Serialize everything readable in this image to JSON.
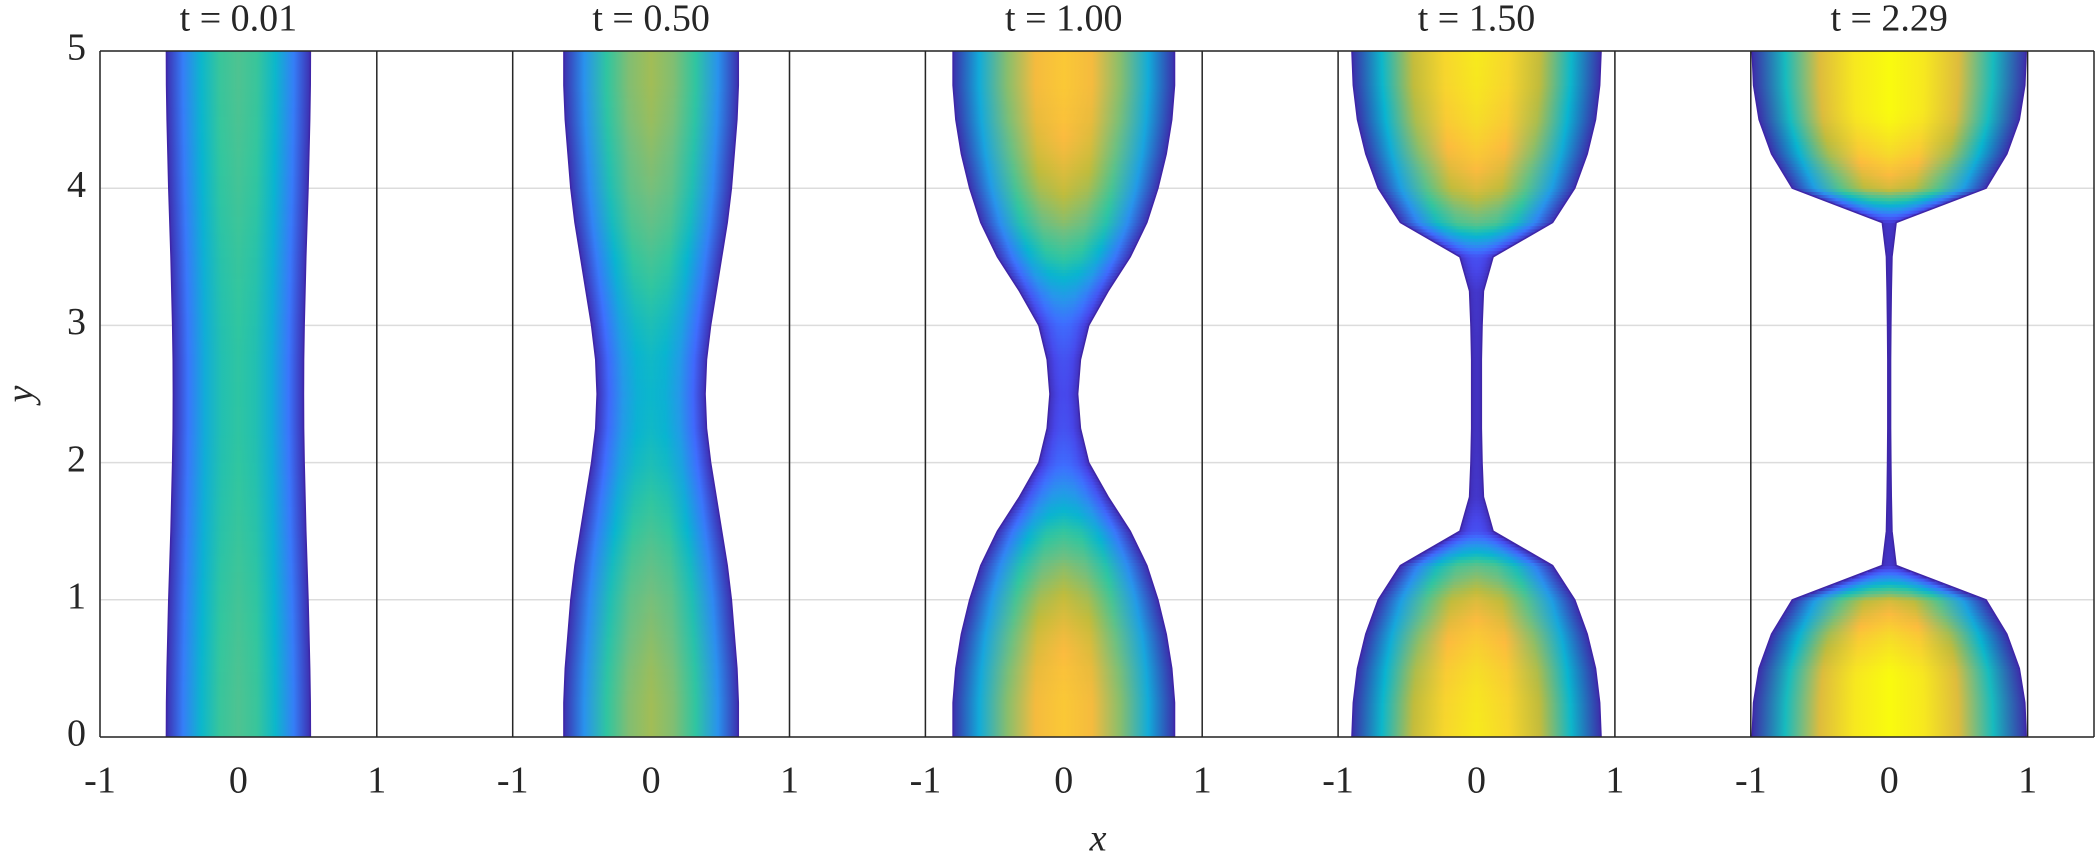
{
  "chart_data": {
    "type": "profile",
    "xlabel": "x",
    "ylabel": "y",
    "xlim": [
      -1,
      1
    ],
    "xticks": [
      -1,
      0,
      1
    ],
    "ylim": [
      0,
      5
    ],
    "yticks": [
      0,
      1,
      2,
      3,
      4,
      5
    ],
    "grid": true,
    "edge_color": "#3e26a8",
    "panels": [
      {
        "title": "t = 0.01",
        "y": [
          0,
          0.25,
          0.5,
          0.75,
          1,
          1.25,
          1.5,
          1.75,
          2,
          2.25,
          2.5,
          2.75,
          3,
          3.25,
          3.5,
          3.75,
          4,
          4.25,
          4.5,
          4.75,
          5
        ],
        "halfwidth": [
          0.52,
          0.519,
          0.515,
          0.509,
          0.503,
          0.495,
          0.487,
          0.481,
          0.475,
          0.471,
          0.47,
          0.471,
          0.475,
          0.481,
          0.487,
          0.495,
          0.503,
          0.509,
          0.515,
          0.519,
          0.52
        ]
      },
      {
        "title": "t = 0.50",
        "y": [
          0,
          0.25,
          0.5,
          0.75,
          1,
          1.25,
          1.5,
          1.75,
          2,
          2.25,
          2.5,
          2.75,
          3,
          3.25,
          3.5,
          3.75,
          4,
          4.25,
          4.5,
          4.75,
          5
        ],
        "halfwidth": [
          0.63,
          0.63,
          0.62,
          0.6,
          0.58,
          0.55,
          0.51,
          0.47,
          0.43,
          0.4,
          0.39,
          0.4,
          0.43,
          0.47,
          0.51,
          0.55,
          0.58,
          0.6,
          0.62,
          0.63,
          0.63
        ]
      },
      {
        "title": "t = 1.00",
        "y": [
          0,
          0.25,
          0.5,
          0.75,
          1,
          1.25,
          1.5,
          1.75,
          2,
          2.25,
          2.5,
          2.75,
          3,
          3.25,
          3.5,
          3.75,
          4,
          4.25,
          4.5,
          4.75,
          5
        ],
        "halfwidth": [
          0.8,
          0.8,
          0.78,
          0.74,
          0.68,
          0.6,
          0.48,
          0.32,
          0.18,
          0.12,
          0.1,
          0.12,
          0.18,
          0.32,
          0.48,
          0.6,
          0.68,
          0.74,
          0.78,
          0.8,
          0.8
        ]
      },
      {
        "title": "t = 1.50",
        "y": [
          0,
          0.25,
          0.5,
          0.75,
          1,
          1.25,
          1.5,
          1.75,
          2,
          2.25,
          2.5,
          2.75,
          3,
          3.25,
          3.5,
          3.75,
          4,
          4.25,
          4.5,
          4.75,
          5
        ],
        "halfwidth": [
          0.9,
          0.89,
          0.86,
          0.8,
          0.71,
          0.55,
          0.12,
          0.05,
          0.04,
          0.035,
          0.035,
          0.035,
          0.04,
          0.05,
          0.12,
          0.55,
          0.71,
          0.8,
          0.86,
          0.89,
          0.9
        ]
      },
      {
        "title": "t = 2.29",
        "y": [
          0,
          0.25,
          0.5,
          0.75,
          1,
          1.25,
          1.5,
          1.75,
          2,
          2.25,
          2.5,
          2.75,
          3,
          3.25,
          3.5,
          3.75,
          4,
          4.25,
          4.5,
          4.75,
          5
        ],
        "halfwidth": [
          0.99,
          0.98,
          0.94,
          0.85,
          0.7,
          0.05,
          0.02,
          0.015,
          0.012,
          0.01,
          0.01,
          0.01,
          0.012,
          0.015,
          0.02,
          0.05,
          0.7,
          0.85,
          0.94,
          0.98,
          0.99
        ]
      }
    ]
  }
}
